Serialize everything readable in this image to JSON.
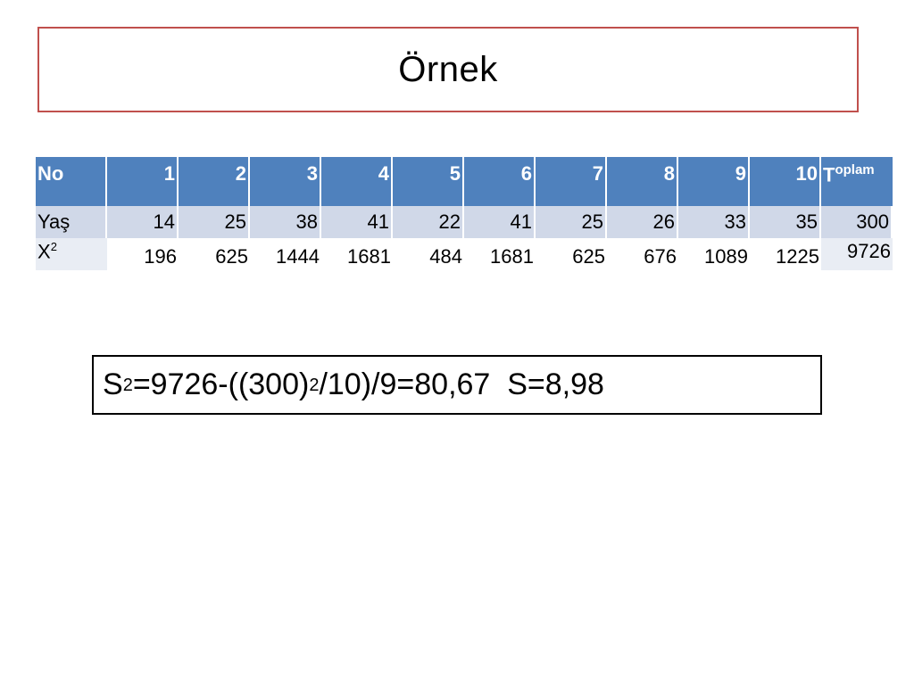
{
  "slide": {
    "title": "Örnek"
  },
  "table": {
    "header": {
      "label": "No",
      "numbers": [
        "1",
        "2",
        "3",
        "4",
        "5",
        "6",
        "7",
        "8",
        "9",
        "10"
      ],
      "total_T": "T",
      "total_rest": "oplam"
    },
    "row_yas": {
      "label": "Yaş",
      "values": [
        "14",
        "25",
        "38",
        "41",
        "22",
        "41",
        "25",
        "26",
        "33",
        "35"
      ],
      "total": "300"
    },
    "row_x2": {
      "label": "X",
      "label_sup": "2",
      "values": [
        "196",
        "625",
        "1444",
        "1681",
        "484",
        "1681",
        "625",
        "676",
        "1089",
        "1225"
      ],
      "total": "9726"
    }
  },
  "formula": {
    "s": "S",
    "exp1": "2",
    "part1": "=9726-((300)",
    "exp2": "2",
    "part2": "/10)/9=80,67  S=8,98"
  },
  "colors": {
    "title_border": "#c0504d",
    "header_bg": "#4f81bd",
    "row_band_bg": "#d0d8e8"
  }
}
